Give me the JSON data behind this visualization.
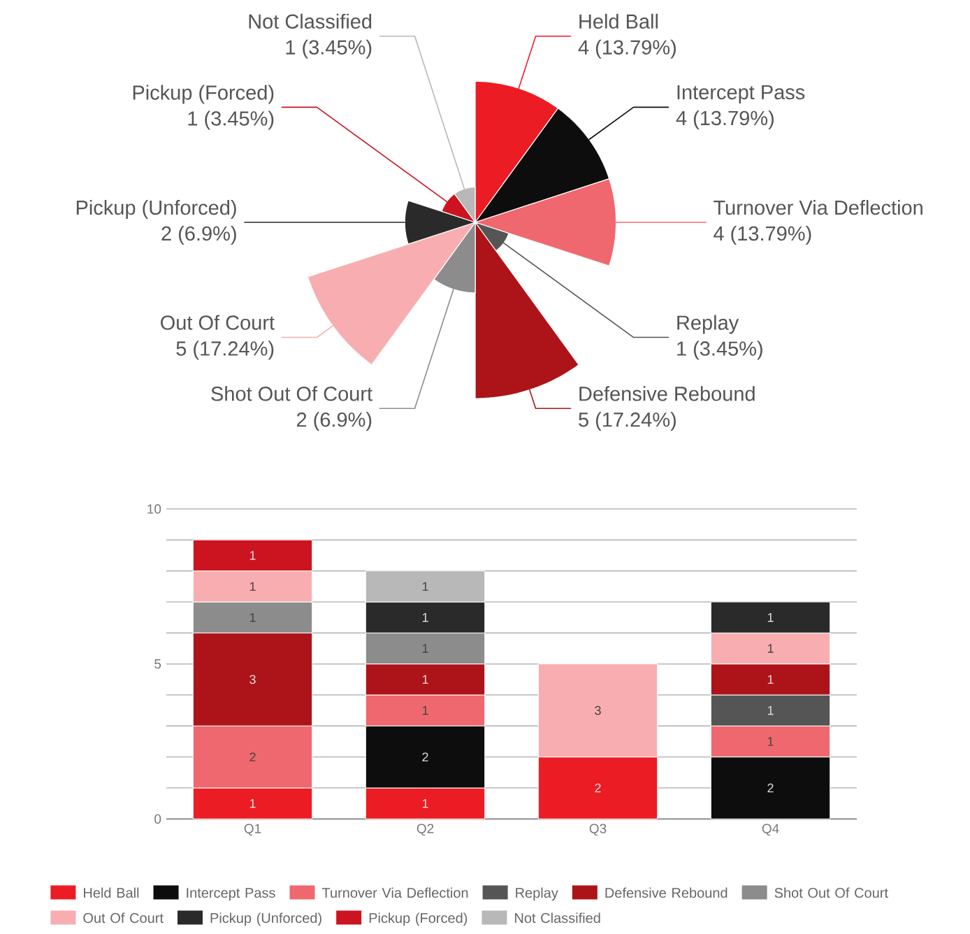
{
  "chart_data": [
    {
      "type": "other",
      "categories": [
        "Held Ball",
        "Intercept Pass",
        "Turnover Via Deflection",
        "Replay",
        "Defensive Rebound",
        "Shot Out Of Court",
        "Out Of Court",
        "Pickup (Unforced)",
        "Pickup (Forced)",
        "Not Classified"
      ],
      "values": [
        4,
        4,
        4,
        1,
        5,
        2,
        5,
        2,
        1,
        1
      ],
      "colors": [
        "#ec1c24",
        "#0d0d0d",
        "#f0686f",
        "#555555",
        "#ad1419",
        "#8c8c8c",
        "#f8aeb0",
        "#2a2a2a",
        "#cc1420",
        "#b8b8b8"
      ],
      "value_labels": [
        "4 (13.79%)",
        "4 (13.79%)",
        "4 (13.79%)",
        "1 (3.45%)",
        "5 (17.24%)",
        "2 (6.9%)",
        "5 (17.24%)",
        "2 (6.9%)",
        "1 (3.45%)",
        "1 (3.45%)"
      ]
    },
    {
      "type": "bar",
      "stacked": true,
      "categories": [
        "Q1",
        "Q2",
        "Q3",
        "Q4"
      ],
      "series": [
        {
          "name": "Held Ball",
          "color": "#ec1c24",
          "values": [
            1,
            1,
            2,
            null
          ]
        },
        {
          "name": "Intercept Pass",
          "color": "#0d0d0d",
          "values": [
            null,
            2,
            null,
            2
          ]
        },
        {
          "name": "Turnover Via Deflection",
          "color": "#f0686f",
          "values": [
            2,
            1,
            null,
            1
          ]
        },
        {
          "name": "Replay",
          "color": "#555555",
          "values": [
            null,
            null,
            null,
            1
          ]
        },
        {
          "name": "Defensive Rebound",
          "color": "#ad1419",
          "values": [
            3,
            1,
            null,
            1
          ]
        },
        {
          "name": "Shot Out Of Court",
          "color": "#8c8c8c",
          "values": [
            1,
            1,
            null,
            null
          ]
        },
        {
          "name": "Out Of Court",
          "color": "#f8aeb0",
          "values": [
            1,
            null,
            3,
            1
          ]
        },
        {
          "name": "Pickup (Unforced)",
          "color": "#2a2a2a",
          "values": [
            null,
            1,
            null,
            1
          ]
        },
        {
          "name": "Pickup (Forced)",
          "color": "#cc1420",
          "values": [
            1,
            null,
            null,
            null
          ]
        },
        {
          "name": "Not Classified",
          "color": "#b8b8b8",
          "values": [
            null,
            1,
            null,
            null
          ]
        }
      ],
      "ylim": [
        0,
        10
      ],
      "yticks": [
        0,
        {
          "value": 1,
          "label": null
        },
        {
          "value": 2,
          "label": null
        },
        {
          "value": 3,
          "label": null
        },
        {
          "value": 4,
          "label": null
        },
        5,
        {
          "value": 6,
          "label": null
        },
        {
          "value": 7,
          "label": null
        },
        {
          "value": 8,
          "label": null
        },
        {
          "value": 9,
          "label": null
        },
        10
      ],
      "grid": "y",
      "data_labels": true,
      "legend": "bottom"
    }
  ]
}
